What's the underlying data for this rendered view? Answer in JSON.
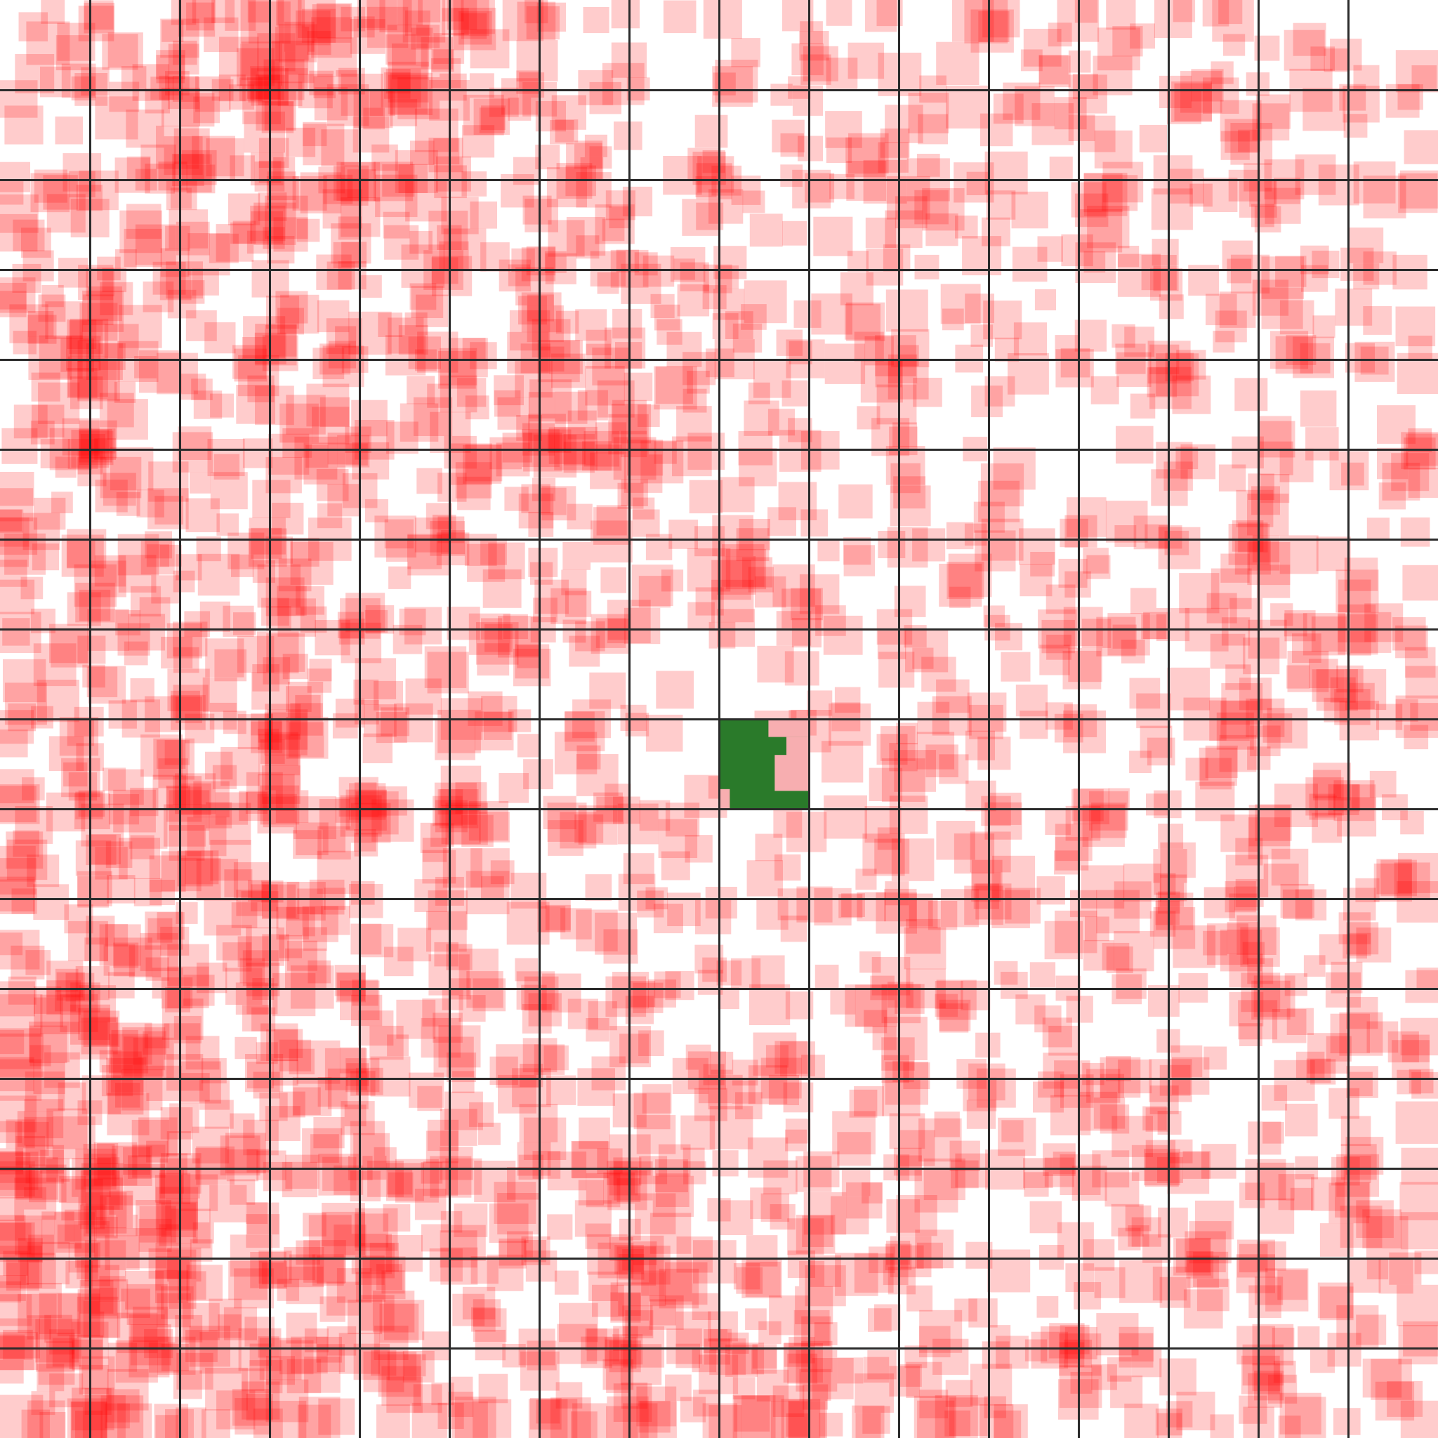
{
  "board": {
    "rows": 16,
    "cols": 16,
    "background": "#ffffff",
    "grid_color": "#2b2b2b",
    "target_cell": {
      "row": 8,
      "col": 8
    },
    "target_color": "#2a7a2a",
    "heat_color": "#ff0000",
    "heat_seed": 73,
    "heat_levels": [
      [
        3,
        4,
        6,
        8,
        9,
        4,
        3,
        1,
        2,
        3,
        2,
        3,
        3,
        3,
        2,
        2
      ],
      [
        3,
        4,
        7,
        8,
        5,
        4,
        4,
        2,
        3,
        3,
        2,
        2,
        3,
        3,
        2,
        2
      ],
      [
        4,
        4,
        5,
        5,
        5,
        3,
        4,
        2,
        3,
        2,
        3,
        2,
        3,
        3,
        3,
        2
      ],
      [
        6,
        5,
        4,
        4,
        4,
        3,
        6,
        5,
        3,
        3,
        2,
        2,
        3,
        3,
        3,
        2
      ],
      [
        4,
        5,
        3,
        4,
        4,
        5,
        7,
        5,
        3,
        3,
        2,
        1,
        2,
        2,
        2,
        2
      ],
      [
        4,
        4,
        3,
        4,
        3,
        4,
        5,
        2,
        3,
        2,
        2,
        2,
        2,
        3,
        3,
        3
      ],
      [
        4,
        5,
        4,
        4,
        4,
        3,
        4,
        3,
        3,
        2,
        3,
        2,
        3,
        3,
        3,
        3
      ],
      [
        3,
        4,
        5,
        5,
        4,
        3,
        3,
        1,
        2,
        2,
        3,
        3,
        3,
        3,
        3,
        3
      ],
      [
        5,
        6,
        5,
        5,
        4,
        3,
        2,
        2,
        0,
        2,
        3,
        2,
        2,
        3,
        3,
        3
      ],
      [
        4,
        5,
        6,
        5,
        3,
        3,
        3,
        2,
        2,
        2,
        2,
        3,
        5,
        3,
        3,
        3
      ],
      [
        4,
        6,
        5,
        4,
        4,
        3,
        3,
        3,
        3,
        3,
        3,
        3,
        3,
        4,
        4,
        3
      ],
      [
        7,
        7,
        5,
        4,
        4,
        3,
        4,
        3,
        3,
        3,
        3,
        3,
        3,
        3,
        3,
        3
      ],
      [
        6,
        6,
        5,
        5,
        5,
        4,
        3,
        5,
        3,
        3,
        3,
        3,
        3,
        3,
        3,
        3
      ],
      [
        10,
        8,
        5,
        5,
        4,
        4,
        4,
        5,
        3,
        3,
        3,
        3,
        3,
        3,
        3,
        3
      ],
      [
        10,
        9,
        6,
        5,
        4,
        4,
        6,
        5,
        6,
        4,
        3,
        2,
        3,
        3,
        3,
        3
      ],
      [
        5,
        5,
        5,
        5,
        4,
        4,
        4,
        5,
        5,
        5,
        4,
        3,
        4,
        3,
        3,
        2
      ]
    ]
  }
}
